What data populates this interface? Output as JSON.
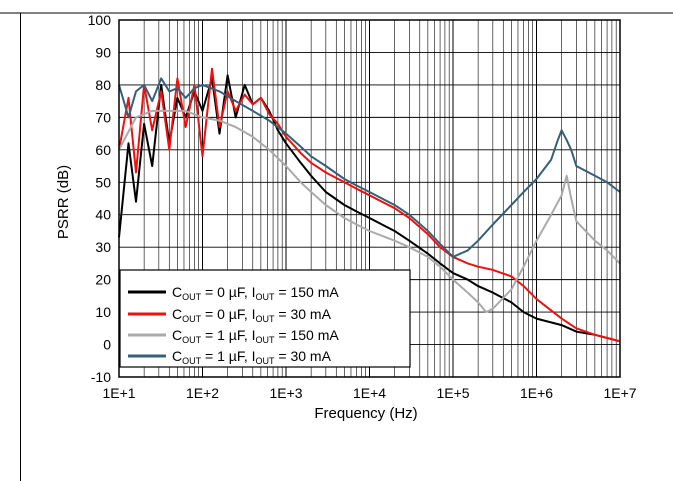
{
  "chart_data": {
    "type": "line",
    "x_scale": "log",
    "xlim": [
      10,
      10000000
    ],
    "ylim": [
      -10,
      100
    ],
    "xlabel": "Frequency (Hz)",
    "ylabel": "PSRR (dB)",
    "x_tick_labels": [
      "1E+1",
      "1E+2",
      "1E+3",
      "1E+4",
      "1E+5",
      "1E+6",
      "1E+7"
    ],
    "y_tick_labels": [
      "-10",
      "0",
      "10",
      "20",
      "30",
      "40",
      "50",
      "60",
      "70",
      "80",
      "90",
      "100"
    ],
    "grid": true,
    "legend_position": "bottom-left",
    "series": [
      {
        "name": "COUT = 0 µF, IOUT = 150 mA",
        "color": "#000000",
        "x": [
          10,
          13,
          16,
          20,
          25,
          32,
          40,
          50,
          63,
          80,
          100,
          130,
          160,
          200,
          250,
          320,
          400,
          500,
          630,
          800,
          1000,
          1500,
          2000,
          3000,
          5000,
          7000,
          10000,
          20000,
          30000,
          50000,
          70000,
          100000,
          150000,
          200000,
          300000,
          500000,
          700000,
          1000000,
          2000000,
          3000000,
          5000000,
          10000000
        ],
        "y": [
          33,
          62,
          44,
          68,
          55,
          80,
          62,
          76,
          70,
          78,
          72,
          82,
          65,
          83,
          70,
          80,
          74,
          76,
          72,
          66,
          62,
          56,
          52,
          47,
          43,
          41,
          39,
          35,
          32,
          28,
          25,
          22,
          20,
          18,
          16,
          13,
          10,
          8,
          6,
          4,
          3,
          1
        ]
      },
      {
        "name": "COUT = 0 µF, IOUT = 30 mA",
        "color": "#ee1111",
        "x": [
          10,
          13,
          16,
          20,
          25,
          32,
          40,
          50,
          63,
          80,
          100,
          130,
          160,
          200,
          250,
          320,
          400,
          500,
          630,
          800,
          1000,
          1500,
          2000,
          3000,
          5000,
          7000,
          10000,
          20000,
          30000,
          50000,
          70000,
          100000,
          150000,
          200000,
          300000,
          500000,
          700000,
          1000000,
          2000000,
          3000000,
          5000000,
          10000000
        ],
        "y": [
          60,
          76,
          53,
          80,
          66,
          78,
          60,
          82,
          67,
          80,
          58,
          85,
          67,
          78,
          72,
          77,
          74,
          76,
          71,
          68,
          64,
          59,
          56,
          53,
          50,
          48,
          46,
          42,
          39,
          34,
          30,
          27,
          25,
          24,
          23,
          21,
          18,
          14,
          8,
          5,
          3,
          1
        ]
      },
      {
        "name": "COUT = 1 µF, IOUT = 150 mA",
        "color": "#aaaaaa",
        "x": [
          10,
          16,
          25,
          40,
          63,
          100,
          160,
          250,
          400,
          630,
          1000,
          1500,
          2000,
          3000,
          5000,
          7000,
          10000,
          20000,
          30000,
          50000,
          70000,
          100000,
          150000,
          200000,
          250000,
          300000,
          500000,
          700000,
          1000000,
          1500000,
          2000000,
          2300000,
          2600000,
          3000000,
          5000000,
          7000000,
          10000000
        ],
        "y": [
          60,
          70,
          72,
          72,
          72,
          70,
          69,
          67,
          64,
          60,
          55,
          50,
          47,
          43,
          39,
          37,
          35,
          32,
          30,
          27,
          24,
          20,
          16,
          13,
          10,
          11,
          17,
          24,
          32,
          40,
          46,
          52,
          45,
          38,
          32,
          29,
          25
        ]
      },
      {
        "name": "COUT = 1 µF, IOUT = 30 mA",
        "color": "#35607a",
        "x": [
          10,
          13,
          16,
          20,
          25,
          32,
          40,
          50,
          63,
          80,
          100,
          160,
          250,
          400,
          630,
          1000,
          1500,
          2000,
          3000,
          5000,
          7000,
          10000,
          20000,
          30000,
          50000,
          70000,
          100000,
          150000,
          200000,
          300000,
          500000,
          700000,
          1000000,
          1500000,
          1800000,
          2000000,
          2300000,
          2600000,
          3000000,
          5000000,
          7000000,
          10000000
        ],
        "y": [
          80,
          70,
          78,
          80,
          75,
          82,
          78,
          79,
          76,
          79,
          80,
          78,
          75,
          72,
          69,
          65,
          61,
          58,
          55,
          51,
          49,
          47,
          43,
          40,
          35,
          31,
          27,
          29,
          32,
          37,
          43,
          47,
          51,
          57,
          63,
          66,
          63,
          60,
          55,
          52,
          50,
          47
        ]
      }
    ]
  }
}
